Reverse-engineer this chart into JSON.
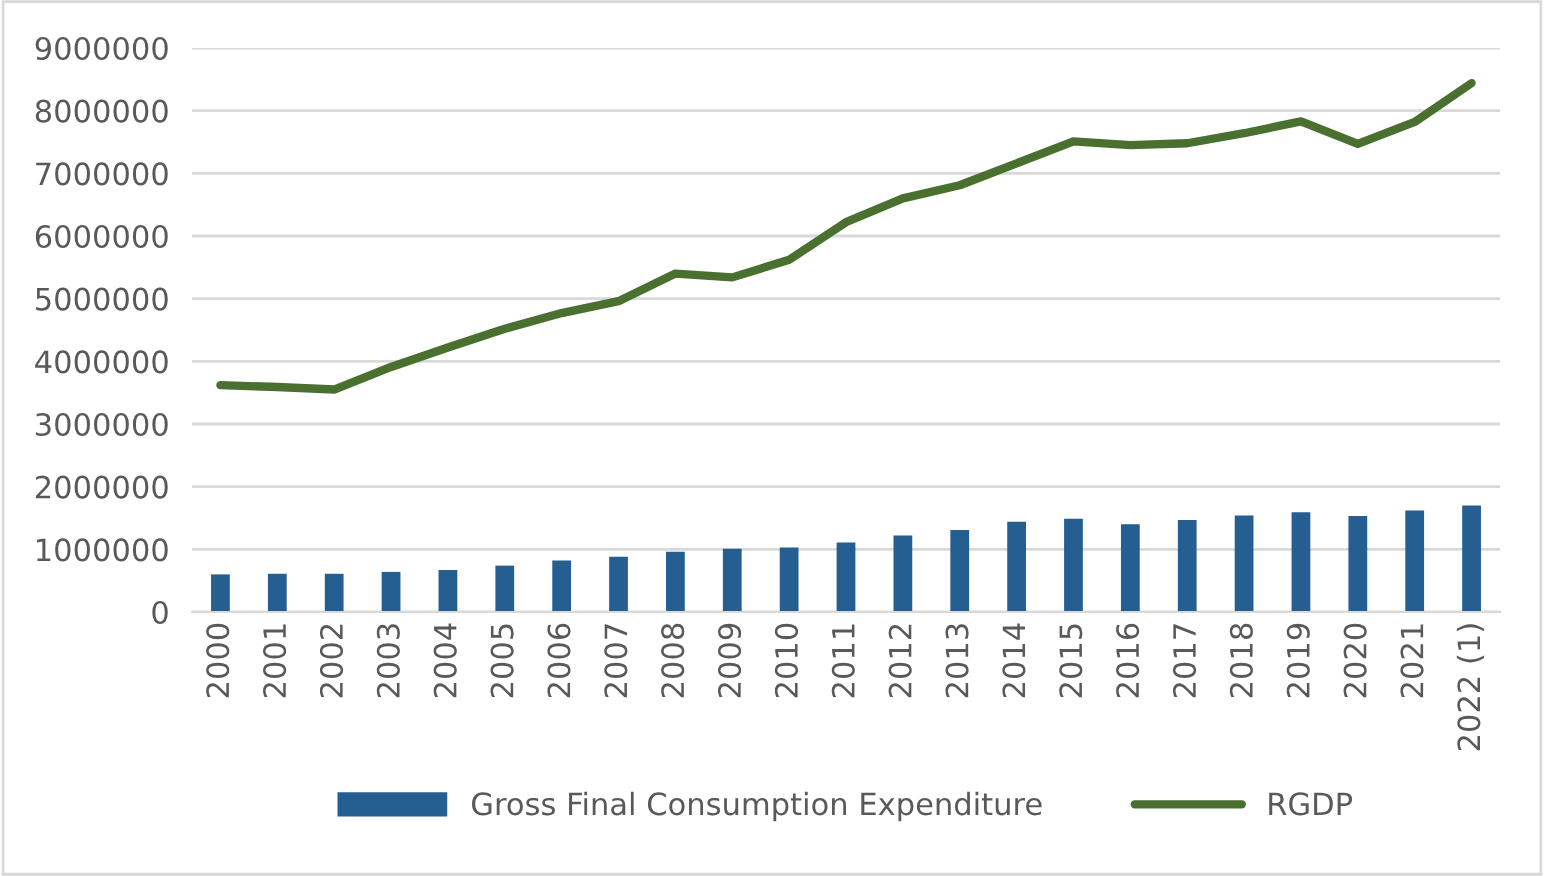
{
  "chart_data": {
    "type": "bar",
    "categories": [
      "2000",
      "2001",
      "2002",
      "2003",
      "2004",
      "2005",
      "2006",
      "2007",
      "2008",
      "2009",
      "2010",
      "2011",
      "2012",
      "2013",
      "2014",
      "2015",
      "2016",
      "2017",
      "2018",
      "2019",
      "2020",
      "2021",
      "2022 (1)"
    ],
    "series": [
      {
        "name": "Gross Final Consumption Expenditure",
        "color": "#255e91",
        "values": [
          600000,
          610000,
          610000,
          640000,
          670000,
          740000,
          820000,
          880000,
          960000,
          1010000,
          1030000,
          1110000,
          1220000,
          1310000,
          1440000,
          1490000,
          1400000,
          1470000,
          1540000,
          1590000,
          1530000,
          1620000,
          1700000
        ]
      },
      {
        "name": "RGDP",
        "type": "line",
        "color": "#4a7030",
        "values": [
          3620000,
          3590000,
          3550000,
          3910000,
          4220000,
          4520000,
          4770000,
          4960000,
          5400000,
          5340000,
          5620000,
          6220000,
          6600000,
          6810000,
          7160000,
          7510000,
          7450000,
          7480000,
          7640000,
          7830000,
          7470000,
          7820000,
          8440000
        ]
      }
    ],
    "ylim": [
      0,
      9000000
    ],
    "yticks": [
      0,
      1000000,
      2000000,
      3000000,
      4000000,
      5000000,
      6000000,
      7000000,
      8000000,
      9000000
    ],
    "grid": "y",
    "legend": "bottom",
    "marker": "none"
  }
}
